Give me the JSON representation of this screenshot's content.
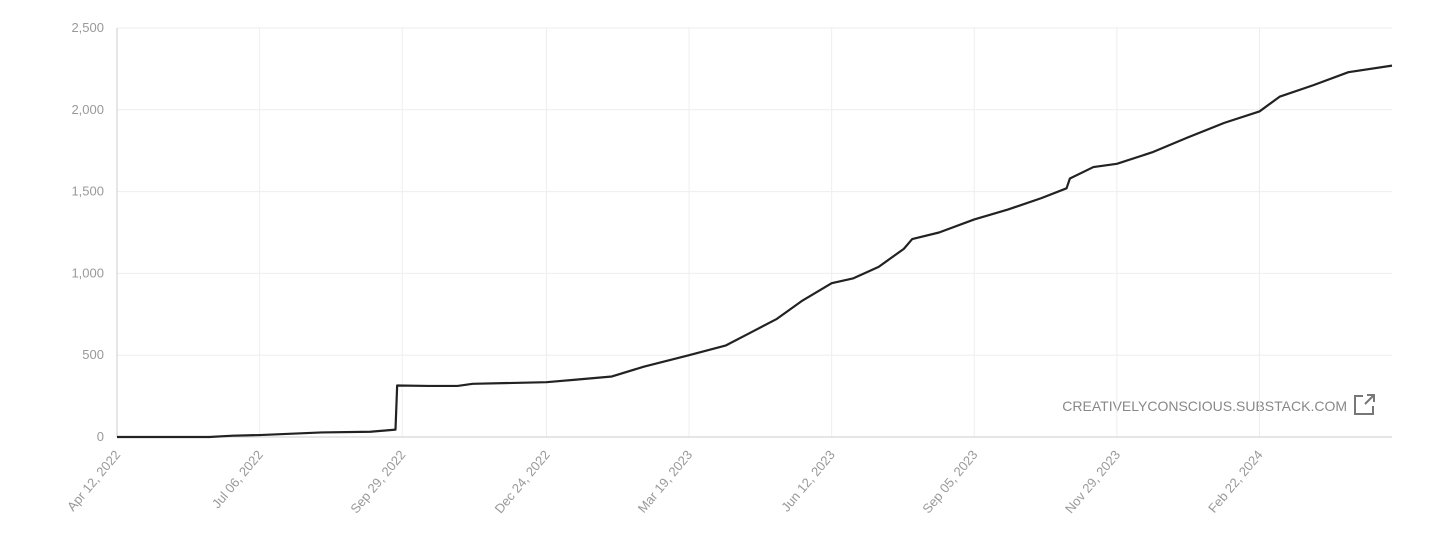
{
  "chart_data": {
    "type": "line",
    "watermark": "CREATIVELYCONSCIOUS.SUBSTACK.COM",
    "color": "#222222",
    "grid": true,
    "x": [
      "2022-04-12",
      "2022-06-06",
      "2022-06-20",
      "2022-07-06",
      "2022-08-12",
      "2022-09-10",
      "2022-09-25",
      "2022-09-26",
      "2022-10-15",
      "2022-11-01",
      "2022-11-10",
      "2022-12-24",
      "2023-01-10",
      "2023-02-01",
      "2023-02-20",
      "2023-03-19",
      "2023-04-10",
      "2023-04-25",
      "2023-05-10",
      "2023-05-25",
      "2023-06-12",
      "2023-06-25",
      "2023-07-10",
      "2023-07-25",
      "2023-07-30",
      "2023-08-15",
      "2023-09-05",
      "2023-09-25",
      "2023-10-15",
      "2023-10-30",
      "2023-11-01",
      "2023-11-15",
      "2023-11-29",
      "2023-12-20",
      "2024-01-10",
      "2024-02-01",
      "2024-02-22",
      "2024-03-05",
      "2024-03-25",
      "2024-04-15",
      "2024-05-11"
    ],
    "values": [
      0,
      0,
      8,
      12,
      28,
      32,
      45,
      315,
      312,
      312,
      325,
      335,
      350,
      370,
      430,
      500,
      560,
      640,
      720,
      830,
      940,
      970,
      1040,
      1150,
      1210,
      1250,
      1330,
      1390,
      1460,
      1520,
      1580,
      1650,
      1670,
      1740,
      1830,
      1920,
      1990,
      2080,
      2150,
      2230,
      2270
    ],
    "xlim": [
      "2022-04-12",
      "2024-05-11"
    ],
    "xticks": [
      {
        "value": "2022-04-12",
        "label": "Apr 12, 2022"
      },
      {
        "value": "2022-07-06",
        "label": "Jul 06, 2022"
      },
      {
        "value": "2022-09-29",
        "label": "Sep 29, 2022"
      },
      {
        "value": "2022-12-24",
        "label": "Dec 24, 2022"
      },
      {
        "value": "2023-03-19",
        "label": "Mar 19, 2023"
      },
      {
        "value": "2023-06-12",
        "label": "Jun 12, 2023"
      },
      {
        "value": "2023-09-05",
        "label": "Sep 05, 2023"
      },
      {
        "value": "2023-11-29",
        "label": "Nov 29, 2023"
      },
      {
        "value": "2024-02-22",
        "label": "Feb 22, 2024"
      }
    ],
    "ylim": [
      0,
      2500
    ],
    "yticks": [
      0,
      500,
      {
        "value": 1000,
        "label": "1,000"
      },
      {
        "value": 1500,
        "label": "1,500"
      },
      {
        "value": 2000,
        "label": "2,000"
      },
      {
        "value": 2500,
        "label": "2,500"
      }
    ]
  }
}
